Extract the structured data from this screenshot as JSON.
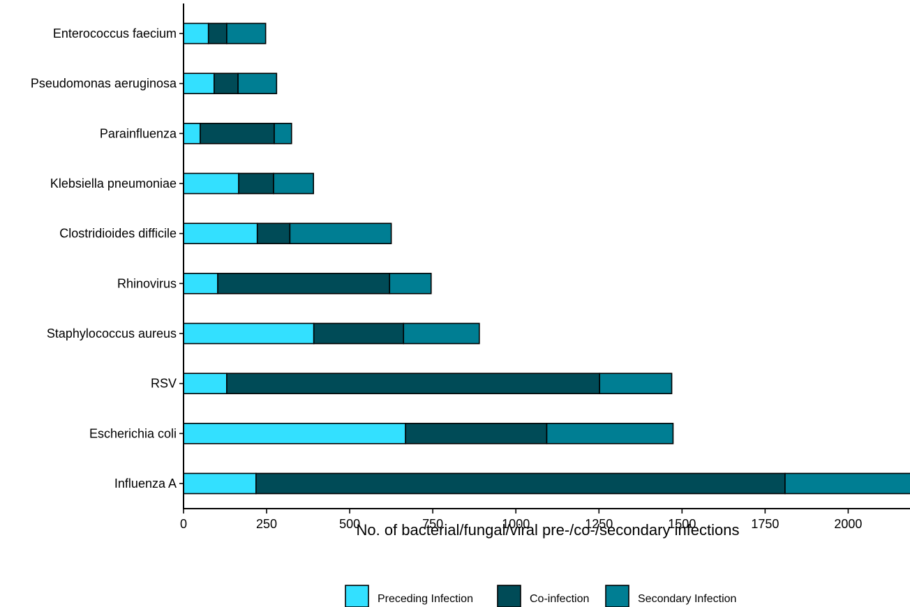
{
  "chart_data": {
    "type": "bar",
    "orientation": "horizontal",
    "stacked": true,
    "categories": [
      "Influenza A",
      "Escherichia coli",
      "RSV",
      "Staphylococcus aureus",
      "Rhinovirus",
      "Clostridioides difficile",
      "Klebsiella pneumoniae",
      "Parainfluenza",
      "Pseudomonas aeruginosa",
      "Enterococcus faecium"
    ],
    "series": [
      {
        "name": "Preceding Infection",
        "color": "#33E0FF",
        "values": [
          218,
          668,
          130,
          392,
          103,
          222,
          166,
          50,
          92,
          75
        ]
      },
      {
        "name": "Co-infection",
        "color": "#004B57",
        "values": [
          1592,
          425,
          1122,
          270,
          517,
          98,
          105,
          223,
          72,
          55
        ]
      },
      {
        "name": "Secondary Infection",
        "color": "#007E93",
        "values": [
          480,
          380,
          217,
          228,
          125,
          305,
          120,
          52,
          116,
          117
        ]
      }
    ],
    "xlabel": "No. of bacterial/fungal/viral pre-/co-/secondary infections",
    "ylabel": "",
    "xlim": [
      0,
      2186
    ],
    "xticks": [
      "0",
      "250",
      "500",
      "750",
      "1000",
      "1250",
      "1500",
      "1750",
      "2000"
    ],
    "grid": false,
    "legend_position": "bottom"
  }
}
